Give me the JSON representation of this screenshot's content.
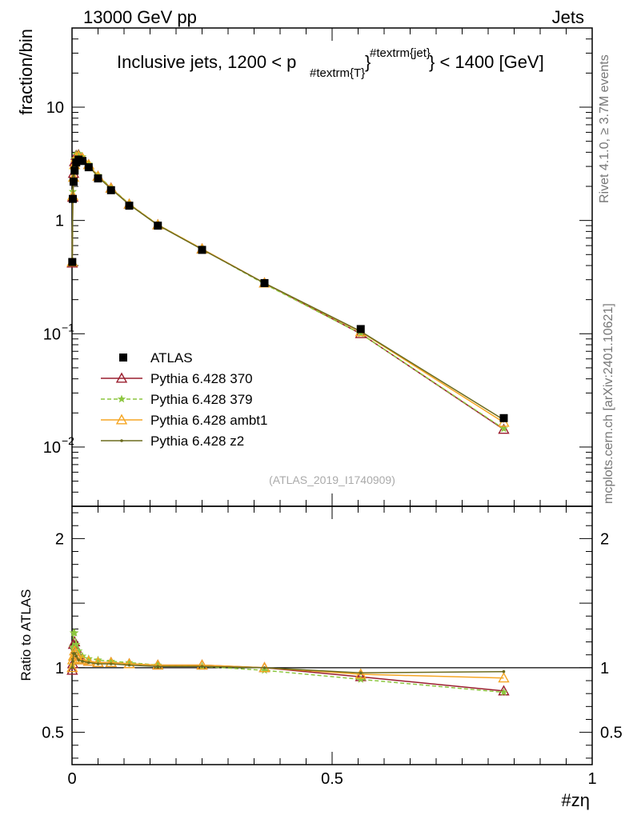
{
  "header": {
    "left": "13000 GeV pp",
    "right": "Jets"
  },
  "side_labels": {
    "rivet": "Rivet 4.1.0, ≥ 3.7M events",
    "mcplots": "mcplots.cern.ch [arXiv:2401.10621]"
  },
  "chart_data": {
    "type": "line",
    "title": {
      "main": "Inclusive jets, 1200 < p",
      "sub": "#textrm{T}",
      "sup": "#textrm{jet}",
      "tail": "} < 1400 [GeV]",
      "brace": "}"
    },
    "analysis_label": "(ATLAS_2019_I1740909)",
    "xlabel": "#zη",
    "ylabel": "fraction/bin",
    "ratio_ylabel": "Ratio to ATLAS",
    "xlim": [
      0,
      1
    ],
    "ylim": [
      0.003,
      50
    ],
    "ratio_ylim": [
      0.25,
      2.25
    ],
    "yscale": "log",
    "main_y_ticks": [
      {
        "value": 10,
        "label": "10"
      },
      {
        "value": 1,
        "label": "1"
      },
      {
        "value": 0.1,
        "label": "10",
        "exp": "−1"
      },
      {
        "value": 0.01,
        "label": "10",
        "exp": "−2"
      }
    ],
    "ratio_y_ticks": [
      {
        "value": 2,
        "label": "2"
      },
      {
        "value": 1,
        "label": "1"
      },
      {
        "value": 0.5,
        "label": "0.5"
      }
    ],
    "x_ticks": [
      {
        "value": 0,
        "label": "0"
      },
      {
        "value": 0.5,
        "label": "0.5"
      },
      {
        "value": 1,
        "label": "1"
      }
    ],
    "x": [
      0.0005,
      0.0015,
      0.003,
      0.005,
      0.008,
      0.0125,
      0.02,
      0.032,
      0.05,
      0.075,
      0.11,
      0.165,
      0.25,
      0.37,
      0.555,
      0.83
    ],
    "data": {
      "name": "ATLAS",
      "color": "#000000",
      "values": [
        0.43,
        1.55,
        2.2,
        2.75,
        3.25,
        3.45,
        3.35,
        2.95,
        2.35,
        1.85,
        1.35,
        0.9,
        0.55,
        0.28,
        0.11,
        0.018
      ]
    },
    "series": [
      {
        "name": "Pythia 6.428 370",
        "color": "#9a1e2e",
        "marker": "triangle-open",
        "dash": "",
        "values": [
          0.42,
          1.6,
          2.6,
          3.3,
          3.75,
          3.8,
          3.55,
          3.1,
          2.45,
          1.93,
          1.39,
          0.915,
          0.56,
          0.28,
          0.1,
          0.0143
        ]
      },
      {
        "name": "Pythia 6.428 379",
        "color": "#8cc63f",
        "marker": "star",
        "dash": "5,3",
        "values": [
          0.44,
          1.8,
          2.8,
          3.5,
          3.85,
          3.9,
          3.65,
          3.15,
          2.5,
          1.95,
          1.4,
          0.92,
          0.56,
          0.275,
          0.1,
          0.0145
        ]
      },
      {
        "name": "Pythia 6.428 ambt1",
        "color": "#f5a623",
        "marker": "triangle-open",
        "dash": "",
        "values": [
          0.43,
          1.65,
          2.4,
          3.1,
          3.6,
          3.7,
          3.55,
          3.1,
          2.45,
          1.92,
          1.39,
          0.915,
          0.56,
          0.28,
          0.104,
          0.0165
        ]
      },
      {
        "name": "Pythia 6.428 z2",
        "color": "#6b6b1e",
        "marker": "dot",
        "dash": "",
        "values": [
          0.43,
          1.62,
          2.45,
          3.05,
          3.55,
          3.65,
          3.5,
          3.05,
          2.42,
          1.9,
          1.38,
          0.91,
          0.555,
          0.28,
          0.105,
          0.0174
        ]
      }
    ],
    "ratios": [
      [
        0.98,
        1.03,
        1.18,
        1.2,
        1.15,
        1.1,
        1.06,
        1.05,
        1.04,
        1.04,
        1.03,
        1.02,
        1.02,
        1.0,
        0.93,
        0.82
      ],
      [
        1.02,
        1.16,
        1.27,
        1.27,
        1.18,
        1.13,
        1.09,
        1.07,
        1.06,
        1.05,
        1.04,
        1.02,
        1.01,
        0.98,
        0.91,
        0.81
      ],
      [
        1.0,
        1.06,
        1.09,
        1.13,
        1.11,
        1.07,
        1.06,
        1.05,
        1.04,
        1.04,
        1.03,
        1.02,
        1.02,
        1.0,
        0.95,
        0.92
      ],
      [
        1.0,
        1.05,
        1.11,
        1.11,
        1.09,
        1.06,
        1.05,
        1.04,
        1.03,
        1.03,
        1.02,
        1.01,
        1.01,
        1.0,
        0.96,
        0.97
      ]
    ],
    "legend": {
      "placement": "lower-left",
      "entries": [
        "ATLAS",
        "Pythia 6.428 370",
        "Pythia 6.428 379",
        "Pythia 6.428 ambt1",
        "Pythia 6.428 z2"
      ]
    }
  }
}
